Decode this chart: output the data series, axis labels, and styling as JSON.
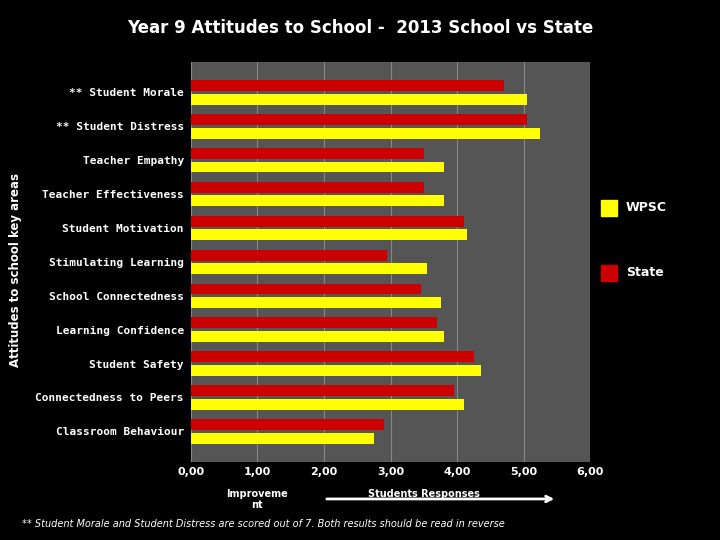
{
  "title": "Year 9 Attitudes to School -  2013 School vs State",
  "categories": [
    "** Student Morale",
    "** Student Distress",
    "Teacher Empathy",
    "Teacher Effectiveness",
    "Student Motivation",
    "Stimulating Learning",
    "School Connectedness",
    "Learning Confidence",
    "Student Safety",
    "Connectedness to Peers",
    "Classroom Behaviour"
  ],
  "wpsc": [
    5.05,
    5.25,
    3.8,
    3.8,
    4.15,
    3.55,
    3.75,
    3.8,
    4.35,
    4.1,
    2.75
  ],
  "state": [
    4.7,
    5.05,
    3.5,
    3.5,
    4.1,
    2.95,
    3.45,
    3.7,
    4.25,
    3.95,
    2.9
  ],
  "wpsc_color": "#FFFF00",
  "state_color": "#CC0000",
  "bg_color": "#000000",
  "plot_bg_color": "#555555",
  "legend_bg_color": "#333333",
  "text_color": "#FFFFFF",
  "title_color": "#FFFFFF",
  "xlim": [
    0,
    6.0
  ],
  "xticks": [
    0,
    1.0,
    2.0,
    3.0,
    4.0,
    5.0,
    6.0
  ],
  "xtick_labels": [
    "0,00",
    "1,00",
    "2,00",
    "3,00",
    "4,00",
    "5,00",
    "6,00"
  ],
  "ylabel": "Attitudes to school key areas",
  "legend_wpsc": "WPSC",
  "legend_state": "State",
  "footnote": "** Student Morale and Student Distress are scored out of 7. Both results should be read in reverse",
  "footnote_bg": "#777777",
  "bar_height": 0.32,
  "bar_gap": 0.08
}
